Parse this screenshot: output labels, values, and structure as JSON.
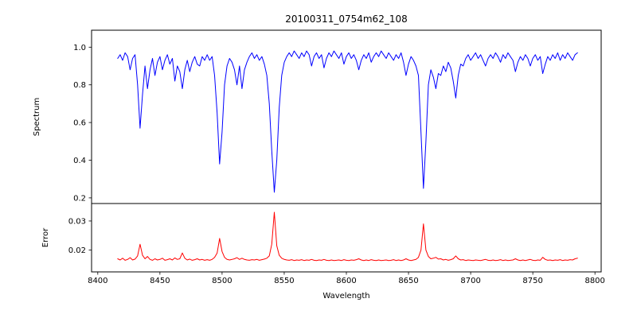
{
  "chart_data": {
    "type": "line",
    "title": "20100311_0754m62_108",
    "xlabel": "Wavelength",
    "x_start": 8416,
    "x_step": 2,
    "xlim": [
      8395,
      8805
    ],
    "x_ticks": [
      {
        "v": 8400,
        "label": "8400"
      },
      {
        "v": 8450,
        "label": "8450"
      },
      {
        "v": 8500,
        "label": "8500"
      },
      {
        "v": 8550,
        "label": "8550"
      },
      {
        "v": 8600,
        "label": "8600"
      },
      {
        "v": 8650,
        "label": "8650"
      },
      {
        "v": 8700,
        "label": "8700"
      },
      {
        "v": 8750,
        "label": "8750"
      },
      {
        "v": 8800,
        "label": "8800"
      }
    ],
    "grid": false,
    "legend": "none",
    "panels": [
      {
        "name": "spectrum",
        "ylabel": "Spectrum",
        "color": "#0000ff",
        "ylim": [
          0.17,
          1.09
        ],
        "y_ticks": [
          {
            "v": 0.2,
            "label": "0.2"
          },
          {
            "v": 0.4,
            "label": "0.4"
          },
          {
            "v": 0.6,
            "label": "0.6"
          },
          {
            "v": 0.8,
            "label": "0.8"
          },
          {
            "v": 1.0,
            "label": "1.0"
          }
        ],
        "absorption_line_minima": [
          {
            "wavelength": 8434,
            "depth": 0.57
          },
          {
            "wavelength": 8498,
            "depth": 0.38
          },
          {
            "wavelength": 8542,
            "depth": 0.23
          },
          {
            "wavelength": 8662,
            "depth": 0.25
          }
        ],
        "values": [
          0.94,
          0.96,
          0.93,
          0.97,
          0.95,
          0.88,
          0.94,
          0.96,
          0.8,
          0.57,
          0.75,
          0.9,
          0.78,
          0.88,
          0.94,
          0.85,
          0.92,
          0.95,
          0.88,
          0.93,
          0.96,
          0.91,
          0.94,
          0.82,
          0.9,
          0.87,
          0.78,
          0.88,
          0.93,
          0.87,
          0.92,
          0.95,
          0.91,
          0.9,
          0.95,
          0.93,
          0.96,
          0.93,
          0.95,
          0.85,
          0.65,
          0.38,
          0.55,
          0.8,
          0.9,
          0.94,
          0.92,
          0.88,
          0.8,
          0.9,
          0.78,
          0.88,
          0.92,
          0.95,
          0.97,
          0.94,
          0.96,
          0.93,
          0.95,
          0.91,
          0.85,
          0.7,
          0.45,
          0.23,
          0.4,
          0.68,
          0.85,
          0.92,
          0.95,
          0.97,
          0.95,
          0.98,
          0.96,
          0.94,
          0.97,
          0.95,
          0.98,
          0.96,
          0.9,
          0.95,
          0.97,
          0.94,
          0.96,
          0.89,
          0.94,
          0.97,
          0.95,
          0.98,
          0.96,
          0.94,
          0.97,
          0.91,
          0.95,
          0.97,
          0.94,
          0.96,
          0.93,
          0.88,
          0.93,
          0.96,
          0.94,
          0.97,
          0.92,
          0.95,
          0.97,
          0.95,
          0.98,
          0.96,
          0.94,
          0.97,
          0.95,
          0.93,
          0.96,
          0.94,
          0.97,
          0.92,
          0.85,
          0.91,
          0.95,
          0.93,
          0.9,
          0.85,
          0.55,
          0.25,
          0.5,
          0.8,
          0.88,
          0.84,
          0.78,
          0.86,
          0.85,
          0.9,
          0.87,
          0.92,
          0.89,
          0.82,
          0.73,
          0.85,
          0.91,
          0.9,
          0.94,
          0.96,
          0.93,
          0.95,
          0.97,
          0.94,
          0.96,
          0.93,
          0.9,
          0.94,
          0.96,
          0.94,
          0.97,
          0.95,
          0.92,
          0.96,
          0.94,
          0.97,
          0.95,
          0.93,
          0.87,
          0.92,
          0.95,
          0.93,
          0.96,
          0.94,
          0.9,
          0.94,
          0.96,
          0.93,
          0.95,
          0.86,
          0.91,
          0.95,
          0.93,
          0.96,
          0.94,
          0.97,
          0.93,
          0.96,
          0.94,
          0.97,
          0.95,
          0.93,
          0.96,
          0.97
        ]
      },
      {
        "name": "error",
        "ylabel": "Error",
        "color": "#ff0000",
        "ylim": [
          0.0125,
          0.036
        ],
        "y_ticks": [
          {
            "v": 0.02,
            "label": "0.02"
          },
          {
            "v": 0.03,
            "label": "0.03"
          }
        ],
        "error_peaks": [
          {
            "wavelength": 8434,
            "value": 0.022
          },
          {
            "wavelength": 8498,
            "value": 0.024
          },
          {
            "wavelength": 8542,
            "value": 0.033
          },
          {
            "wavelength": 8662,
            "value": 0.029
          }
        ],
        "values": [
          0.017,
          0.0166,
          0.0172,
          0.0165,
          0.0168,
          0.0174,
          0.0166,
          0.0169,
          0.018,
          0.022,
          0.0182,
          0.017,
          0.0178,
          0.0168,
          0.0165,
          0.017,
          0.0166,
          0.0168,
          0.0172,
          0.0165,
          0.0167,
          0.017,
          0.0166,
          0.0173,
          0.0168,
          0.017,
          0.019,
          0.0172,
          0.0166,
          0.0169,
          0.0165,
          0.0167,
          0.017,
          0.0166,
          0.0168,
          0.0165,
          0.0167,
          0.0165,
          0.0168,
          0.0175,
          0.019,
          0.024,
          0.0195,
          0.0175,
          0.0168,
          0.0166,
          0.0168,
          0.017,
          0.0174,
          0.0168,
          0.0172,
          0.0168,
          0.0166,
          0.0165,
          0.0167,
          0.0166,
          0.0168,
          0.0165,
          0.0167,
          0.0169,
          0.0172,
          0.018,
          0.022,
          0.033,
          0.0215,
          0.0182,
          0.0172,
          0.0168,
          0.0166,
          0.0165,
          0.0167,
          0.0164,
          0.0166,
          0.0165,
          0.0167,
          0.0164,
          0.0166,
          0.0165,
          0.0168,
          0.0165,
          0.0164,
          0.0166,
          0.0165,
          0.0168,
          0.0165,
          0.0164,
          0.0166,
          0.0164,
          0.0165,
          0.0166,
          0.0164,
          0.0167,
          0.0165,
          0.0164,
          0.0166,
          0.0165,
          0.0167,
          0.017,
          0.0166,
          0.0164,
          0.0166,
          0.0164,
          0.0167,
          0.0165,
          0.0164,
          0.0166,
          0.0164,
          0.0165,
          0.0166,
          0.0164,
          0.0165,
          0.0167,
          0.0164,
          0.0166,
          0.0164,
          0.0166,
          0.017,
          0.0166,
          0.0164,
          0.0166,
          0.0168,
          0.0175,
          0.02,
          0.029,
          0.02,
          0.0178,
          0.017,
          0.0172,
          0.0175,
          0.0169,
          0.017,
          0.0166,
          0.0168,
          0.0165,
          0.0167,
          0.017,
          0.018,
          0.017,
          0.0166,
          0.0167,
          0.0164,
          0.0166,
          0.0165,
          0.0164,
          0.0166,
          0.0165,
          0.0164,
          0.0166,
          0.0168,
          0.0165,
          0.0164,
          0.0166,
          0.0164,
          0.0165,
          0.0167,
          0.0164,
          0.0166,
          0.0164,
          0.0165,
          0.0166,
          0.017,
          0.0166,
          0.0164,
          0.0166,
          0.0164,
          0.0166,
          0.0168,
          0.0165,
          0.0164,
          0.0166,
          0.0165,
          0.0175,
          0.0168,
          0.0165,
          0.0166,
          0.0164,
          0.0166,
          0.0165,
          0.0167,
          0.0164,
          0.0166,
          0.0165,
          0.0167,
          0.0166,
          0.017,
          0.0172
        ]
      }
    ]
  }
}
